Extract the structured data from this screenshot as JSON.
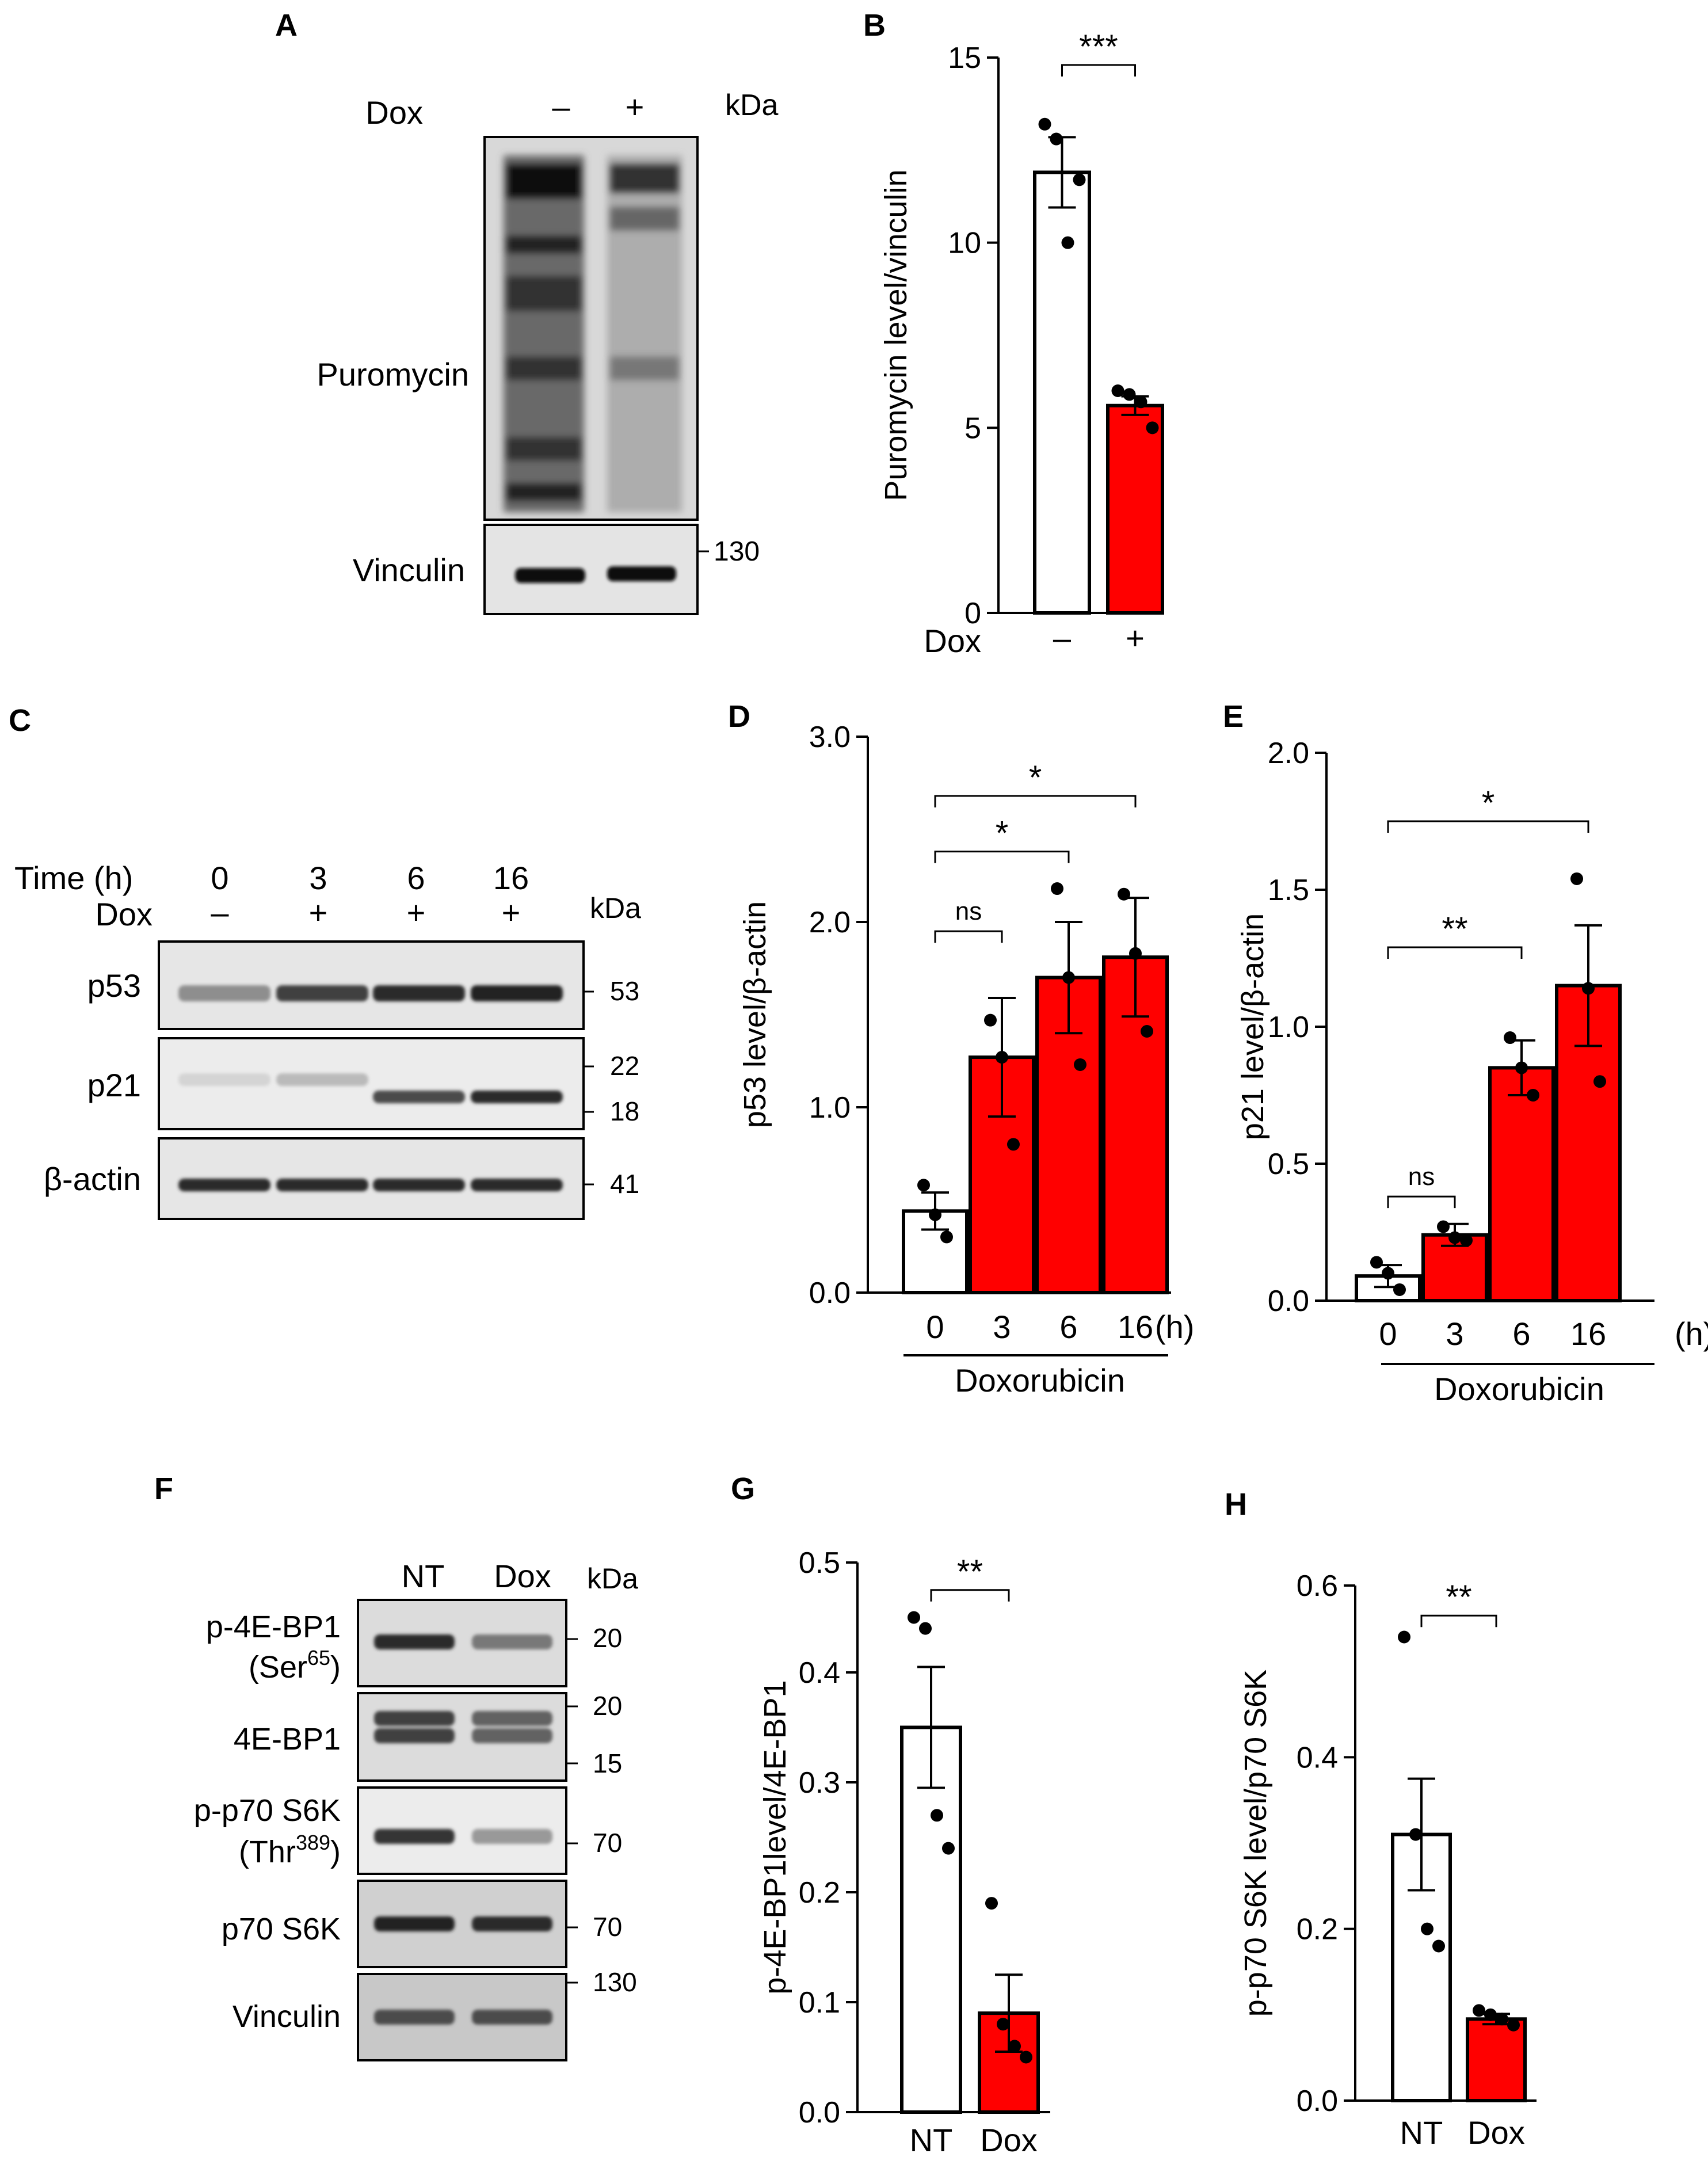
{
  "panels": {
    "A": {
      "letter": "A",
      "treatment_label": "Dox",
      "lanes": [
        "–",
        "+"
      ],
      "kda_label": "kDa",
      "rows": [
        {
          "name": "Puromycin",
          "intensity": [
            0.85,
            0.45
          ]
        },
        {
          "name": "Vinculin",
          "marker": "130",
          "intensity": [
            0.9,
            0.9
          ]
        }
      ]
    },
    "C": {
      "letter": "C",
      "time_label": "Time (h)",
      "time_values": [
        "0",
        "3",
        "6",
        "16"
      ],
      "dox_label": "Dox",
      "dox_values": [
        "–",
        "+",
        "+",
        "+"
      ],
      "kda_label": "kDa",
      "rows": [
        {
          "name": "p53",
          "markers": [
            "53"
          ],
          "intensity": [
            0.4,
            0.75,
            0.85,
            0.9
          ]
        },
        {
          "name": "p21",
          "markers": [
            "22",
            "18"
          ],
          "intensity": [
            0.08,
            0.2,
            0.7,
            0.85
          ]
        },
        {
          "name": "β-actin",
          "markers": [
            "41"
          ],
          "intensity": [
            0.85,
            0.85,
            0.85,
            0.85
          ]
        }
      ]
    },
    "F": {
      "letter": "F",
      "lanes": [
        "NT",
        "Dox"
      ],
      "kda_label": "kDa",
      "rows": [
        {
          "name": "p-4E-BP1",
          "sub": "(Ser",
          "sup": "65",
          "sub_end": ")",
          "markers": [
            "20"
          ],
          "intensity": [
            0.85,
            0.5
          ]
        },
        {
          "name": "4E-BP1",
          "markers": [
            "20",
            "15"
          ],
          "intensity": [
            0.75,
            0.6
          ]
        },
        {
          "name": "p-p70 S6K",
          "sub": "(Thr",
          "sup": "389",
          "sub_end": ")",
          "markers": [
            "70"
          ],
          "intensity": [
            0.8,
            0.35
          ]
        },
        {
          "name": "p70 S6K",
          "markers": [
            "70"
          ],
          "intensity": [
            0.9,
            0.85
          ]
        },
        {
          "name": "Vinculin",
          "markers": [
            "130"
          ],
          "intensity": [
            0.7,
            0.7
          ]
        }
      ]
    }
  },
  "chart_data": [
    {
      "id": "B",
      "letter": "B",
      "type": "bar",
      "categories": [
        "–",
        "+"
      ],
      "group_label": "Dox",
      "unit_label": "",
      "values": [
        11.9,
        5.6
      ],
      "errors": [
        0.95,
        0.25
      ],
      "colors": [
        "#ffffff",
        "#ff0000"
      ],
      "points": [
        [
          13.2,
          12.8,
          10.0,
          11.7
        ],
        [
          6.0,
          5.9,
          5.7,
          5.0
        ]
      ],
      "ylabel": "Puromycin level/vinculin",
      "ylim": [
        0,
        15
      ],
      "yticks": [
        "0",
        "5",
        "10",
        "15"
      ],
      "brackets": [
        {
          "from": 0,
          "to": 1,
          "label": "***",
          "y": 14.8
        }
      ]
    },
    {
      "id": "D",
      "letter": "D",
      "type": "bar",
      "categories": [
        "0",
        "3",
        "6",
        "16"
      ],
      "unit_label": "(h)",
      "group_label": "Doxorubicin",
      "values": [
        0.44,
        1.27,
        1.7,
        1.81
      ],
      "errors": [
        0.1,
        0.32,
        0.3,
        0.32
      ],
      "colors": [
        "#ffffff",
        "#ff0000",
        "#ff0000",
        "#ff0000"
      ],
      "points": [
        [
          0.58,
          0.42,
          0.3
        ],
        [
          1.47,
          1.27,
          0.8
        ],
        [
          2.18,
          1.7,
          1.23
        ],
        [
          2.15,
          1.83,
          1.41
        ]
      ],
      "ylabel": "p53 level/β-actin",
      "ylim": [
        0,
        3
      ],
      "yticks": [
        "0.0",
        "1.0",
        "2.0",
        "3.0"
      ],
      "brackets": [
        {
          "from": 0,
          "to": 3,
          "label": "*",
          "y": 2.68
        },
        {
          "from": 0,
          "to": 2,
          "label": "*",
          "y": 2.38
        },
        {
          "from": 0,
          "to": 1,
          "label": "ns",
          "y": 1.95
        }
      ]
    },
    {
      "id": "E",
      "letter": "E",
      "type": "bar",
      "categories": [
        "0",
        "3",
        "6",
        "16"
      ],
      "unit_label": "(h)",
      "group_label": "Doxorubicin",
      "values": [
        0.09,
        0.24,
        0.85,
        1.15
      ],
      "errors": [
        0.04,
        0.04,
        0.1,
        0.22
      ],
      "colors": [
        "#ffffff",
        "#ff0000",
        "#ff0000",
        "#ff0000"
      ],
      "points": [
        [
          0.14,
          0.1,
          0.04
        ],
        [
          0.27,
          0.23,
          0.22
        ],
        [
          0.96,
          0.85,
          0.75
        ],
        [
          1.54,
          1.14,
          0.8
        ]
      ],
      "ylabel": "p21 level/β-actin",
      "ylim": [
        0,
        2
      ],
      "yticks": [
        "0.0",
        "0.5",
        "1.0",
        "1.5",
        "2.0"
      ],
      "brackets": [
        {
          "from": 0,
          "to": 3,
          "label": "*",
          "y": 1.75
        },
        {
          "from": 0,
          "to": 2,
          "label": "**",
          "y": 1.29
        },
        {
          "from": 0,
          "to": 1,
          "label": "ns",
          "y": 0.38
        }
      ]
    },
    {
      "id": "G",
      "letter": "G",
      "type": "bar",
      "categories": [
        "NT",
        "Dox"
      ],
      "unit_label": "",
      "group_label": "",
      "values": [
        0.35,
        0.09
      ],
      "errors": [
        0.055,
        0.035
      ],
      "colors": [
        "#ffffff",
        "#ff0000"
      ],
      "points": [
        [
          0.45,
          0.44,
          0.27,
          0.24
        ],
        [
          0.19,
          0.08,
          0.06,
          0.05
        ]
      ],
      "ylabel": "p-4E-BP1level/4E-BP1",
      "ylim": [
        0,
        0.5
      ],
      "yticks": [
        "0.0",
        "0.1",
        "0.2",
        "0.3",
        "0.4",
        "0.5"
      ],
      "brackets": [
        {
          "from": 0,
          "to": 1,
          "label": "**",
          "y": 0.475
        }
      ]
    },
    {
      "id": "H",
      "letter": "H",
      "type": "bar",
      "categories": [
        "NT",
        "Dox"
      ],
      "unit_label": "",
      "group_label": "",
      "values": [
        0.31,
        0.095
      ],
      "errors": [
        0.065,
        0.006
      ],
      "colors": [
        "#ffffff",
        "#ff0000"
      ],
      "points": [
        [
          0.54,
          0.31,
          0.2,
          0.18
        ],
        [
          0.105,
          0.1,
          0.095,
          0.088
        ]
      ],
      "ylabel": "p-p70 S6K level/p70 S6K",
      "ylim": [
        0,
        0.6
      ],
      "yticks": [
        "0.0",
        "0.2",
        "0.4",
        "0.6"
      ],
      "brackets": [
        {
          "from": 0,
          "to": 1,
          "label": "**",
          "y": 0.565
        }
      ]
    }
  ]
}
